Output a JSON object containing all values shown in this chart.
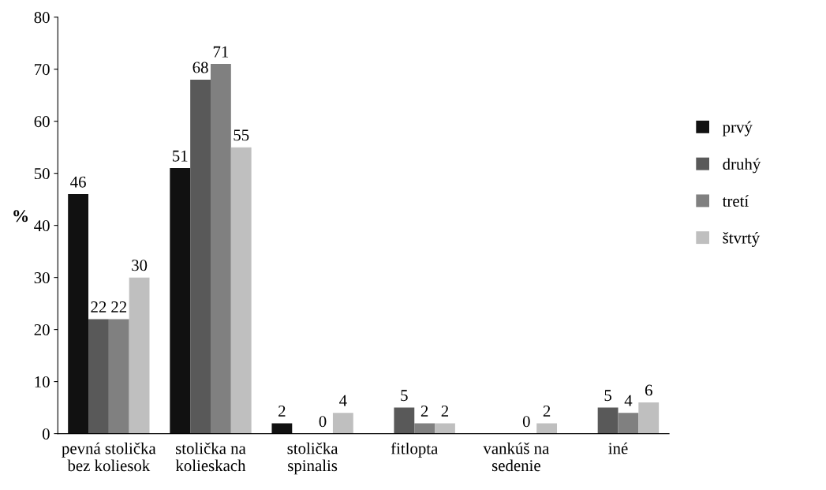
{
  "chart_data": {
    "type": "bar",
    "ylabel": "%",
    "categories": [
      "pevná stolička\nbez koliesok",
      "stolička na\nkolieskach",
      "stolička\nspinalis",
      "fitlopta",
      "vankúš na\nsedenie",
      "iné"
    ],
    "series": [
      {
        "name": "prvý",
        "color": "#111111",
        "values": [
          46,
          51,
          2,
          null,
          null,
          null
        ]
      },
      {
        "name": "druhý",
        "color": "#595959",
        "values": [
          22,
          68,
          null,
          5,
          null,
          5
        ]
      },
      {
        "name": "tretí",
        "color": "#808080",
        "values": [
          22,
          71,
          0,
          2,
          0,
          4
        ]
      },
      {
        "name": "štvrtý",
        "color": "#bfbfbf",
        "values": [
          30,
          55,
          4,
          2,
          2,
          6
        ]
      }
    ],
    "ylim": [
      0,
      80
    ],
    "yticks": [
      0,
      10,
      20,
      30,
      40,
      50,
      60,
      70,
      80
    ],
    "grid": false,
    "legend": "right",
    "data_labels": true
  }
}
